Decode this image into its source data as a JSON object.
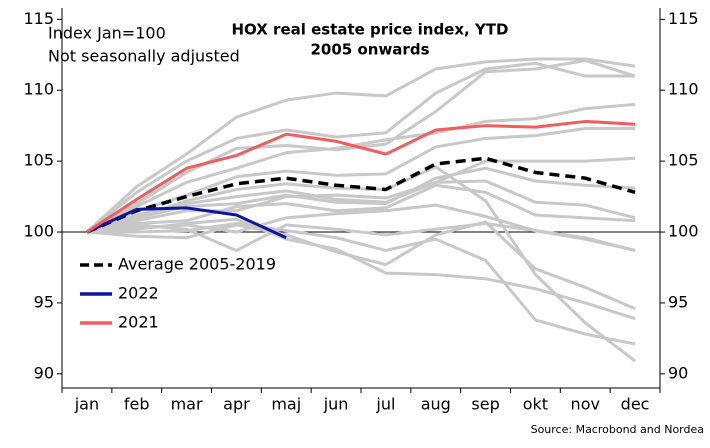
{
  "chart_data": {
    "type": "line",
    "title": [
      "HOX real estate price index, YTD",
      "2005 onwards"
    ],
    "annotations": [
      "Index Jan=100",
      "Not seasonally adjusted"
    ],
    "source": "Source: Macrobond and Nordea",
    "categories": [
      "jan",
      "feb",
      "mar",
      "apr",
      "maj",
      "jun",
      "jul",
      "aug",
      "sep",
      "okt",
      "nov",
      "dec"
    ],
    "ylim": [
      89,
      115.8
    ],
    "yticks": [
      90,
      95,
      100,
      105,
      110,
      115
    ],
    "hline": 100,
    "legend": "lower left",
    "series": [
      {
        "color": "#c8c8c8",
        "values": [
          100,
          103.2,
          105.5,
          108.1,
          109.3,
          109.8,
          109.6,
          111.5,
          112.0,
          112.2,
          112.2,
          111.7
        ]
      },
      {
        "color": "#c8c8c8",
        "values": [
          100,
          102.8,
          105.0,
          106.6,
          107.2,
          106.7,
          107.0,
          109.8,
          111.5,
          111.9,
          111.0,
          111.0
        ]
      },
      {
        "color": "#c8c8c8",
        "values": [
          100,
          102.0,
          104.2,
          105.9,
          106.1,
          105.8,
          106.2,
          108.5,
          111.3,
          111.5,
          112.1,
          111.0
        ]
      },
      {
        "color": "#c8c8c8",
        "values": [
          100,
          101.8,
          103.5,
          104.5,
          105.6,
          105.9,
          106.5,
          107.0,
          107.8,
          108.0,
          108.7,
          109.0
        ]
      },
      {
        "color": "#c8c8c8",
        "values": [
          100,
          101.5,
          102.6,
          103.9,
          104.3,
          104.0,
          104.1,
          106.0,
          106.6,
          106.8,
          107.3,
          107.3
        ]
      },
      {
        "color": "#c8c8c8",
        "values": [
          100,
          101.2,
          102.0,
          102.5,
          102.9,
          102.3,
          102.1,
          103.5,
          105.0,
          105.0,
          105.0,
          105.2
        ]
      },
      {
        "color": "#c8c8c8",
        "values": [
          100,
          101.0,
          101.8,
          102.0,
          102.6,
          102.1,
          102.0,
          103.8,
          104.5,
          103.6,
          103.3,
          103.1
        ]
      },
      {
        "color": "#c8c8c8",
        "values": [
          100,
          100.8,
          101.5,
          101.5,
          102.5,
          102.6,
          102.4,
          103.5,
          103.6,
          102.1,
          101.9,
          101.0
        ]
      },
      {
        "color": "#c8c8c8",
        "values": [
          100,
          100.6,
          100.8,
          101.8,
          102.0,
          101.5,
          101.7,
          103.3,
          102.8,
          101.2,
          101.0,
          100.8
        ]
      },
      {
        "color": "#c8c8c8",
        "values": [
          100,
          100.3,
          100.5,
          100.0,
          101.0,
          101.3,
          101.5,
          101.9,
          101.1,
          100.1,
          99.6,
          98.7
        ]
      },
      {
        "color": "#c8c8c8",
        "values": [
          100,
          100.5,
          100.2,
          98.7,
          100.5,
          100.2,
          99.8,
          100.2,
          100.6,
          100.1,
          99.5,
          98.7
        ]
      },
      {
        "color": "#c8c8c8",
        "values": [
          100,
          99.7,
          99.6,
          100.5,
          99.8,
          98.6,
          97.7,
          99.8,
          100.7,
          97.4,
          96.1,
          94.6
        ]
      },
      {
        "color": "#c8c8c8",
        "values": [
          100,
          100.2,
          100.6,
          100.9,
          99.5,
          98.8,
          97.1,
          97.0,
          96.7,
          96.0,
          95.0,
          93.9
        ]
      },
      {
        "color": "#c8c8c8",
        "values": [
          100,
          100.0,
          100.1,
          100.6,
          100.1,
          99.6,
          98.7,
          99.5,
          98.0,
          93.8,
          92.8,
          92.1
        ]
      },
      {
        "color": "#c8c8c8",
        "values": [
          100,
          101.0,
          102.2,
          103.0,
          103.4,
          103.1,
          103.0,
          104.6,
          102.2,
          97.0,
          93.6,
          90.9
        ]
      },
      {
        "name": "Average 2005-2019",
        "color": "#000000",
        "dashed": true,
        "values": [
          100,
          101.5,
          102.5,
          103.4,
          103.8,
          103.3,
          103.0,
          104.8,
          105.2,
          104.2,
          103.8,
          102.8
        ]
      },
      {
        "name": "2022",
        "color": "#0d159c",
        "values": [
          100,
          101.6,
          101.7,
          101.2,
          99.6,
          null,
          null,
          null,
          null,
          null,
          null,
          null
        ]
      },
      {
        "name": "2021",
        "color": "#f25c5c",
        "values": [
          100,
          102.3,
          104.5,
          105.4,
          106.9,
          106.4,
          105.5,
          107.2,
          107.5,
          107.4,
          107.8,
          107.6
        ]
      }
    ]
  }
}
